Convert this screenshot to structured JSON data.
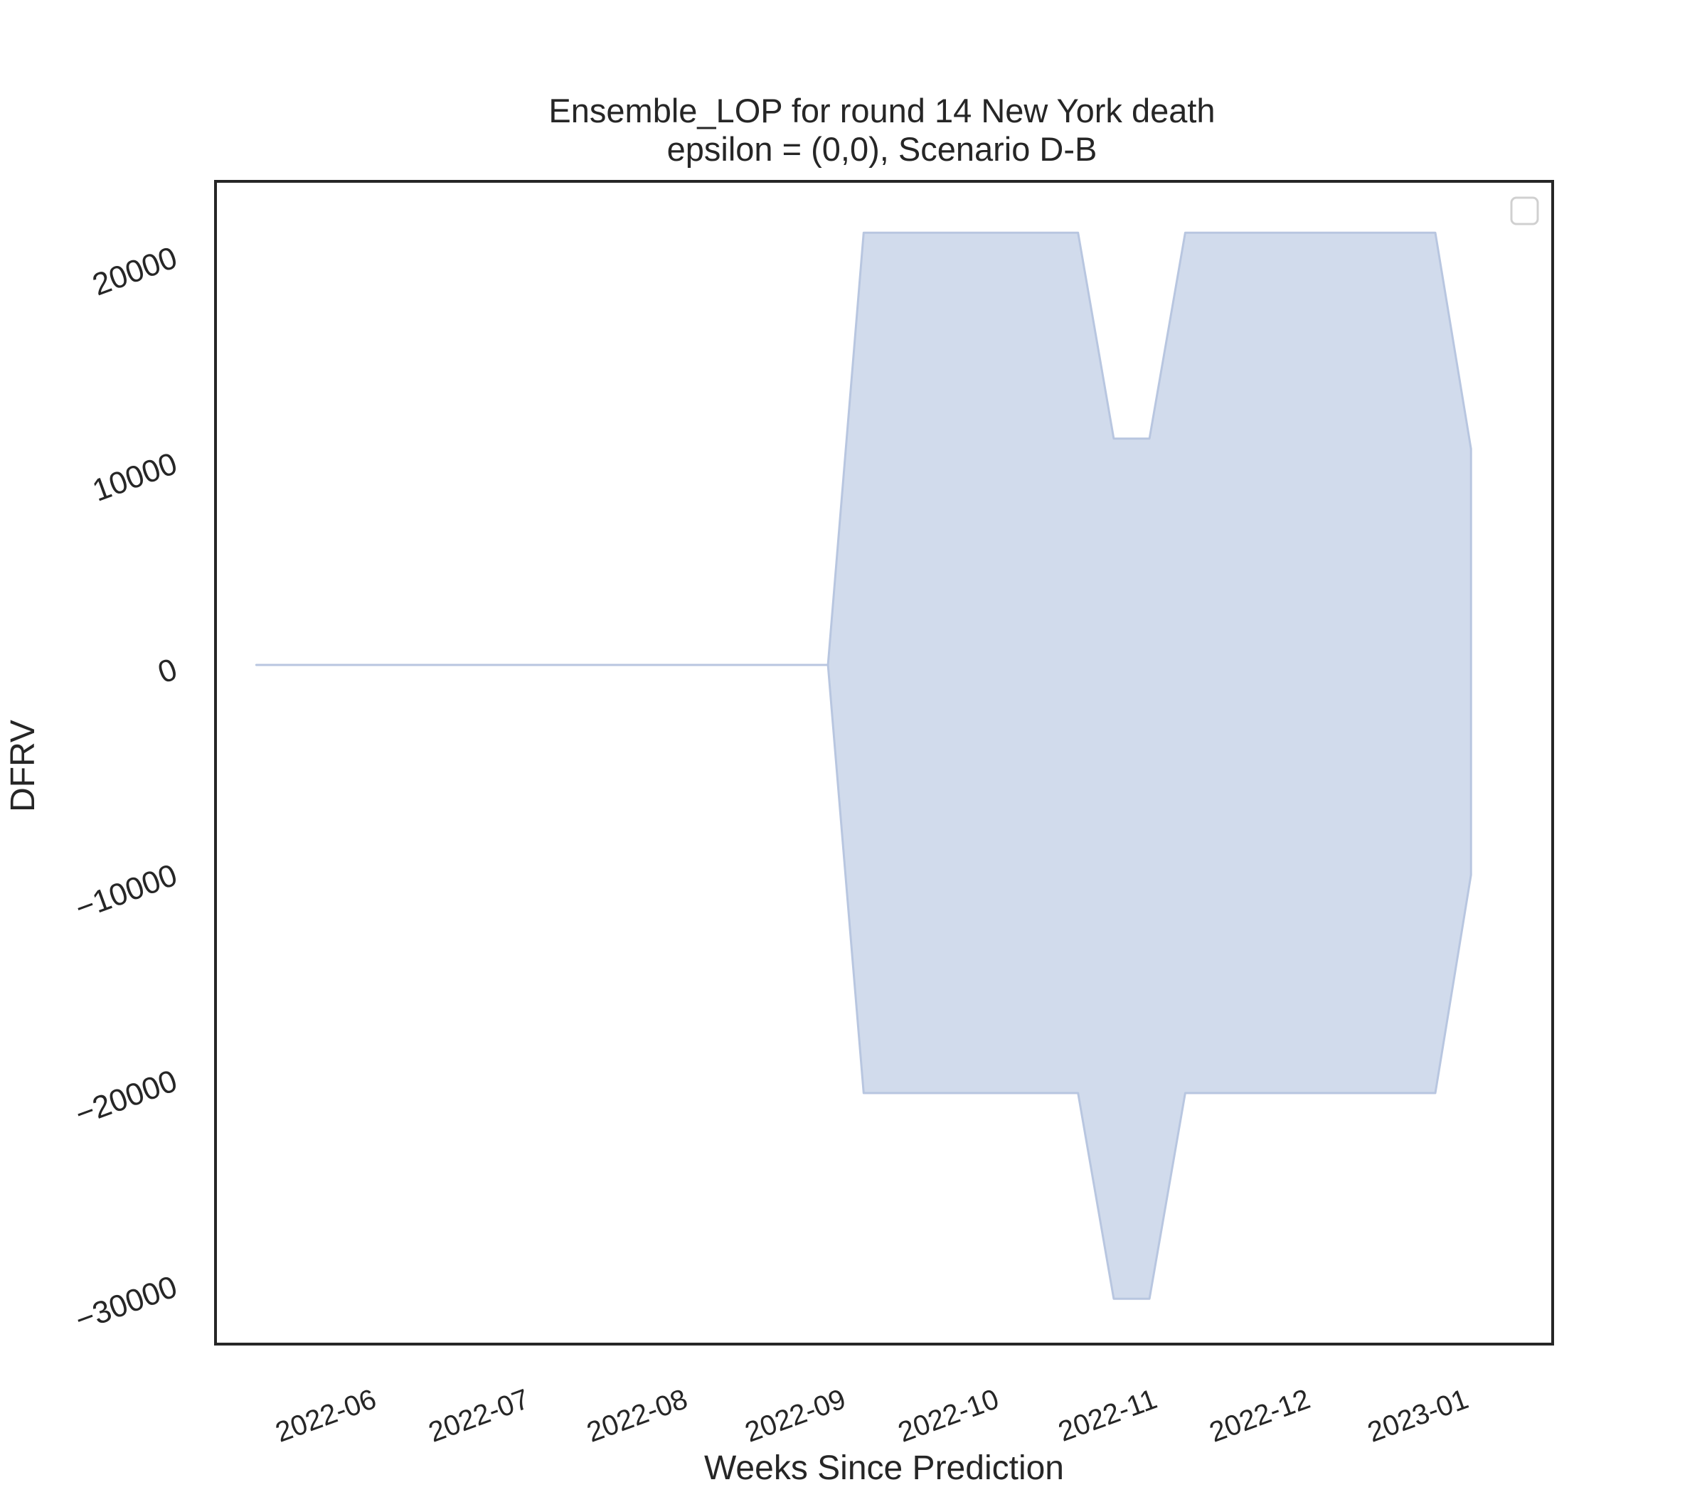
{
  "chart_data": {
    "type": "area",
    "title": "Ensemble_LOP for round 14 New York death",
    "subtitle": "epsilon = (0,0), Scenario D-B",
    "xlabel": "Weeks Since Prediction",
    "ylabel": "DFRV",
    "x_ticks": [
      "2022-06",
      "2022-07",
      "2022-08",
      "2022-09",
      "2022-10",
      "2022-11",
      "2022-12",
      "2023-01"
    ],
    "y_ticks": [
      20000,
      10000,
      0,
      -10000,
      -20000,
      -30000
    ],
    "xlim": [
      "2022-05-06",
      "2023-01-23"
    ],
    "ylim": [
      -33000,
      23500
    ],
    "legend": "top-right (empty)",
    "grid": false,
    "fill_color": "#d1dbec",
    "edge_color": "#b8c6e0",
    "series": [
      {
        "x": [
          "2022-05-14",
          "2022-05-21",
          "2022-05-28",
          "2022-06-04",
          "2022-06-11",
          "2022-06-18",
          "2022-06-25",
          "2022-07-02",
          "2022-07-09",
          "2022-07-16",
          "2022-07-23",
          "2022-07-30",
          "2022-08-06",
          "2022-08-13",
          "2022-08-20",
          "2022-08-27",
          "2022-09-03",
          "2022-09-10",
          "2022-09-17",
          "2022-09-24",
          "2022-10-01",
          "2022-10-08",
          "2022-10-15",
          "2022-10-22",
          "2022-10-29",
          "2022-11-05",
          "2022-11-12",
          "2022-11-19",
          "2022-11-26",
          "2022-12-03",
          "2022-12-10",
          "2022-12-17",
          "2022-12-24",
          "2022-12-31",
          "2023-01-07"
        ],
        "upper": [
          0,
          0,
          0,
          0,
          0,
          0,
          0,
          0,
          0,
          0,
          0,
          0,
          0,
          0,
          0,
          0,
          0,
          21000,
          21000,
          21000,
          21000,
          21000,
          21000,
          21000,
          11000,
          11000,
          21000,
          21000,
          21000,
          21000,
          21000,
          21000,
          21000,
          21000,
          10500
        ],
        "lower": [
          0,
          0,
          0,
          0,
          0,
          0,
          0,
          0,
          0,
          0,
          0,
          0,
          0,
          0,
          0,
          0,
          0,
          -20800,
          -20800,
          -20800,
          -20800,
          -20800,
          -20800,
          -20800,
          -30800,
          -30800,
          -20800,
          -20800,
          -20800,
          -20800,
          -20800,
          -20800,
          -20800,
          -20800,
          -10200
        ]
      }
    ]
  }
}
